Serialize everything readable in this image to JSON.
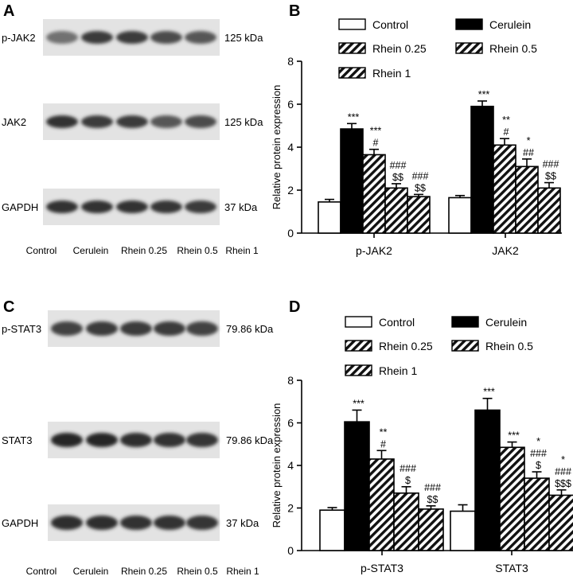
{
  "panels": {
    "A": {
      "letter": "A",
      "rows": [
        {
          "label": "p-JAK2",
          "size": "125 kDa",
          "intensity": [
            0.55,
            0.85,
            0.85,
            0.75,
            0.7
          ]
        },
        {
          "label": "JAK2",
          "size": "125 kDa",
          "intensity": [
            0.9,
            0.85,
            0.85,
            0.7,
            0.75
          ]
        },
        {
          "label": "GAPDH",
          "size": "37 kDa",
          "intensity": [
            0.9,
            0.9,
            0.9,
            0.88,
            0.85
          ]
        }
      ],
      "lanes": [
        "Control",
        "Cerulein",
        "Rhein 0.25",
        "Rhein 0.5",
        "Rhein 1"
      ]
    },
    "C": {
      "letter": "C",
      "rows": [
        {
          "label": "p-STAT3",
          "size": "79.86 kDa",
          "intensity": [
            0.8,
            0.85,
            0.85,
            0.85,
            0.8
          ]
        },
        {
          "label": "STAT3",
          "size": "79.86 kDa",
          "intensity": [
            0.95,
            0.95,
            0.92,
            0.9,
            0.88
          ]
        },
        {
          "label": "GAPDH",
          "size": "37 kDa",
          "intensity": [
            0.92,
            0.92,
            0.9,
            0.9,
            0.88
          ]
        }
      ],
      "lanes": [
        "Control",
        "Cerulein",
        "Rhein 0.25",
        "Rhein 0.5",
        "Rhein 1"
      ]
    }
  },
  "chart_data": [
    {
      "panel": "B",
      "type": "bar",
      "ylabel": "Relative protein expression",
      "ylim": [
        0,
        8
      ],
      "yticks": [
        "0",
        "2",
        "4",
        "6",
        "8"
      ],
      "categories": [
        "p-JAK2",
        "JAK2"
      ],
      "legend": [
        "Control",
        "Cerulein",
        "Rhein 0.25",
        "Rhein 0.5",
        "Rhein 1"
      ],
      "series": [
        {
          "name": "Control",
          "fill": "white",
          "values": [
            1.45,
            1.65
          ],
          "err": [
            0.12,
            0.1
          ],
          "marks": [
            [],
            []
          ]
        },
        {
          "name": "Cerulein",
          "fill": "black",
          "values": [
            4.85,
            5.9
          ],
          "err": [
            0.25,
            0.25
          ],
          "marks": [
            [
              "***"
            ],
            [
              "***"
            ]
          ]
        },
        {
          "name": "Rhein 0.25",
          "fill": "hatch",
          "values": [
            3.65,
            4.1
          ],
          "err": [
            0.25,
            0.3
          ],
          "marks": [
            [
              "***",
              "#"
            ],
            [
              "**",
              "#"
            ]
          ]
        },
        {
          "name": "Rhein 0.5",
          "fill": "hatch",
          "values": [
            2.1,
            3.1
          ],
          "err": [
            0.2,
            0.35
          ],
          "marks": [
            [
              "###",
              "$$"
            ],
            [
              "*",
              "##"
            ]
          ]
        },
        {
          "name": "Rhein 1",
          "fill": "hatch",
          "values": [
            1.7,
            2.1
          ],
          "err": [
            0.1,
            0.25
          ],
          "marks": [
            [
              "###",
              "$$"
            ],
            [
              "###",
              "$$"
            ]
          ]
        }
      ]
    },
    {
      "panel": "D",
      "type": "bar",
      "ylabel": "Relative protein expression",
      "ylim": [
        0,
        8
      ],
      "yticks": [
        "0",
        "2",
        "4",
        "6",
        "8"
      ],
      "categories": [
        "p-STAT3",
        "STAT3"
      ],
      "legend": [
        "Control",
        "Cerulein",
        "Rhein 0.25",
        "Rhein 0.5",
        "Rhein 1"
      ],
      "series": [
        {
          "name": "Control",
          "fill": "white",
          "values": [
            1.9,
            1.85
          ],
          "err": [
            0.12,
            0.3
          ],
          "marks": [
            [],
            []
          ]
        },
        {
          "name": "Cerulein",
          "fill": "black",
          "values": [
            6.05,
            6.6
          ],
          "err": [
            0.55,
            0.55
          ],
          "marks": [
            [
              "***"
            ],
            [
              "***"
            ]
          ]
        },
        {
          "name": "Rhein 0.25",
          "fill": "hatch",
          "values": [
            4.3,
            4.85
          ],
          "err": [
            0.4,
            0.25
          ],
          "marks": [
            [
              "**",
              "#"
            ],
            [
              "***"
            ]
          ]
        },
        {
          "name": "Rhein 0.5",
          "fill": "hatch",
          "values": [
            2.7,
            3.4
          ],
          "err": [
            0.3,
            0.3
          ],
          "marks": [
            [
              "###",
              "$"
            ],
            [
              "*",
              "###",
              "$"
            ]
          ]
        },
        {
          "name": "Rhein 1",
          "fill": "hatch",
          "values": [
            1.95,
            2.6
          ],
          "err": [
            0.15,
            0.25
          ],
          "marks": [
            [
              "###",
              "$$"
            ],
            [
              "*",
              "###",
              "$$$"
            ]
          ]
        }
      ]
    }
  ]
}
